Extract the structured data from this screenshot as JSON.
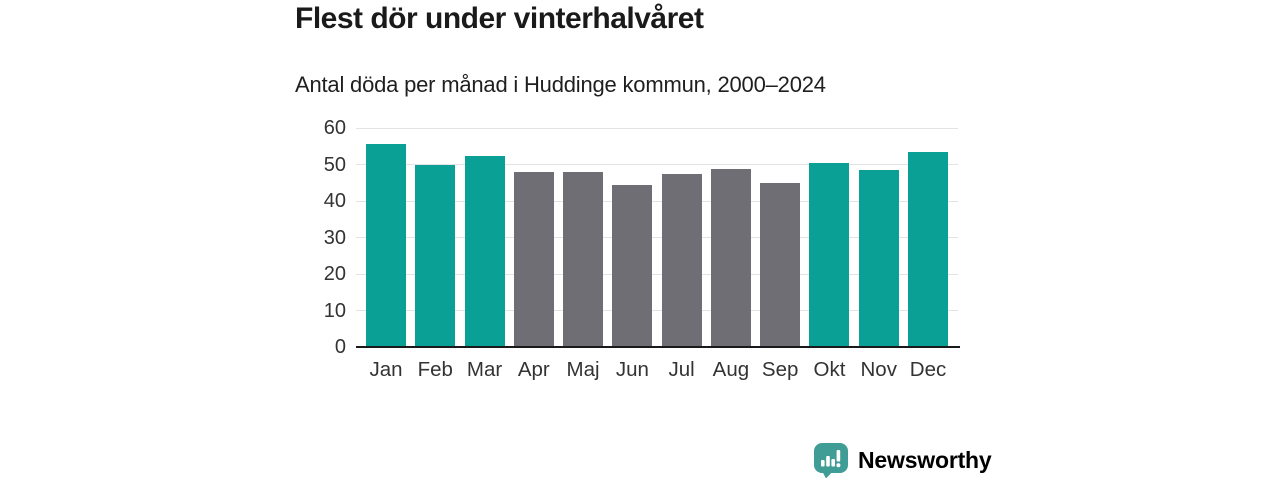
{
  "title": "Flest dör under vinterhalvåret",
  "subtitle": "Antal döda per månad i Huddinge kommun, 2000–2024",
  "colors": {
    "winter_bar": "#0aa096",
    "summer_bar": "#6f6e74",
    "gridline": "#e3e3e3",
    "axis": "#1a1a1a",
    "tick_label": "#333333",
    "brand_teal": "#3f9d96"
  },
  "footer": {
    "brand": "Newsworthy",
    "logo_icon": "speech-bubble-bar-chart-icon"
  },
  "chart_data": {
    "type": "bar",
    "categories": [
      "Jan",
      "Feb",
      "Mar",
      "Apr",
      "Maj",
      "Jun",
      "Jul",
      "Aug",
      "Sep",
      "Okt",
      "Nov",
      "Dec"
    ],
    "values": [
      55.7,
      50.0,
      52.4,
      48.0,
      47.9,
      44.3,
      47.3,
      48.7,
      44.8,
      50.3,
      48.4,
      53.4
    ],
    "bar_groups": [
      "winter",
      "winter",
      "winter",
      "summer",
      "summer",
      "summer",
      "summer",
      "summer",
      "summer",
      "winter",
      "winter",
      "winter"
    ],
    "title": "Flest dör under vinterhalvåret",
    "subtitle": "Antal döda per månad i Huddinge kommun, 2000–2024",
    "xlabel": "",
    "ylabel": "",
    "ylim": [
      0,
      60
    ],
    "yticks": [
      0,
      10,
      20,
      30,
      40,
      50,
      60
    ],
    "grid": "horizontal",
    "legend": "none"
  }
}
